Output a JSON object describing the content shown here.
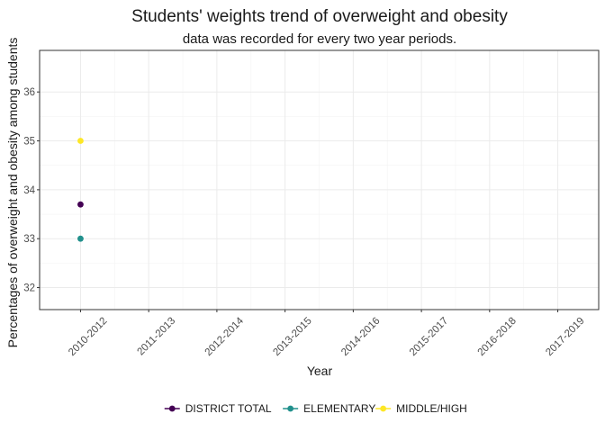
{
  "chart_data": {
    "type": "scatter",
    "title": "Students' weights trend of overweight and obesity",
    "subtitle": "data was recorded for every two year periods.",
    "xlabel": "Year",
    "ylabel": "Percentages of overweight and obesity among students",
    "categories": [
      "2010-2012",
      "2011-2013",
      "2012-2014",
      "2013-2015",
      "2014-2016",
      "2015-2017",
      "2016-2018",
      "2017-2019"
    ],
    "yticks": [
      32,
      33,
      34,
      35,
      36
    ],
    "ylim": [
      31.55,
      36.85
    ],
    "grid": true,
    "legend_position": "bottom",
    "series": [
      {
        "name": "DISTRICT TOTAL",
        "color": "#440154",
        "points": [
          {
            "x": "2010-2012",
            "y": 33.7
          }
        ]
      },
      {
        "name": "ELEMENTARY",
        "color": "#21908C",
        "points": [
          {
            "x": "2010-2012",
            "y": 33.0
          }
        ]
      },
      {
        "name": "MIDDLE/HIGH",
        "color": "#FDE725",
        "points": [
          {
            "x": "2010-2012",
            "y": 35.0
          }
        ]
      }
    ]
  }
}
